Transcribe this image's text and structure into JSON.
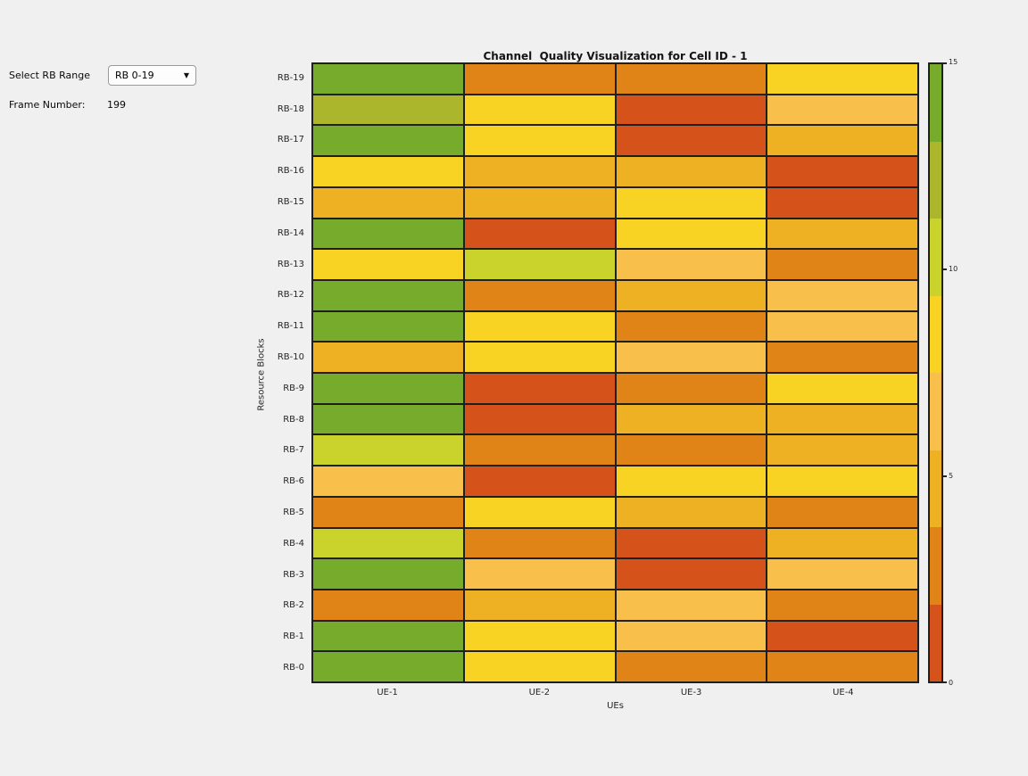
{
  "window": {
    "background": "#f0f0f0"
  },
  "controls": {
    "rb_range_label": "Select RB Range",
    "rb_range_value": "RB 0-19",
    "dropdown_arrow_icon": "chevron-down",
    "frame_number_label": "Frame Number:",
    "frame_number_value": "199"
  },
  "chart": {
    "title": "Channel  Quality Visualization for Cell ID - 1",
    "xlabel": "UEs",
    "ylabel": "Resource Blocks"
  },
  "chart_data": {
    "type": "heatmap",
    "title": "Channel  Quality Visualization for Cell ID - 1",
    "xlabel": "UEs",
    "ylabel": "Resource Blocks",
    "x_categories": [
      "UE-1",
      "UE-2",
      "UE-3",
      "UE-4"
    ],
    "y_categories_top_to_bottom": [
      "RB-19",
      "RB-18",
      "RB-17",
      "RB-16",
      "RB-15",
      "RB-14",
      "RB-13",
      "RB-12",
      "RB-11",
      "RB-10",
      "RB-9",
      "RB-8",
      "RB-7",
      "RB-6",
      "RB-5",
      "RB-4",
      "RB-3",
      "RB-2",
      "RB-1",
      "RB-0"
    ],
    "grid_line_color": "#1f1f1f",
    "palette": {
      "green": {
        "hex": "#76ab2c",
        "approx_value": 14.1
      },
      "olive": {
        "hex": "#abb62c",
        "approx_value": 12.2
      },
      "yellow_green": {
        "hex": "#c9d32b",
        "approx_value": 10.3
      },
      "yellow": {
        "hex": "#f8d323",
        "approx_value": 8.4
      },
      "light_orange": {
        "hex": "#f8c04a",
        "approx_value": 6.6
      },
      "amber": {
        "hex": "#edb123",
        "approx_value": 4.7
      },
      "orange": {
        "hex": "#e08418",
        "approx_value": 2.8
      },
      "red_orange": {
        "hex": "#d5521a",
        "approx_value": 0.9
      }
    },
    "values_estimated_from_colorbar": true,
    "rows": [
      {
        "label": "RB-19",
        "cells": [
          "green",
          "orange",
          "orange",
          "yellow"
        ],
        "approx_values": [
          14.1,
          2.8,
          2.8,
          8.4
        ]
      },
      {
        "label": "RB-18",
        "cells": [
          "olive",
          "yellow",
          "red_orange",
          "light_orange"
        ],
        "approx_values": [
          12.2,
          8.4,
          0.9,
          6.6
        ]
      },
      {
        "label": "RB-17",
        "cells": [
          "green",
          "yellow",
          "red_orange",
          "amber"
        ],
        "approx_values": [
          14.1,
          8.4,
          0.9,
          4.7
        ]
      },
      {
        "label": "RB-16",
        "cells": [
          "yellow",
          "amber",
          "amber",
          "red_orange"
        ],
        "approx_values": [
          8.4,
          4.7,
          4.7,
          0.9
        ]
      },
      {
        "label": "RB-15",
        "cells": [
          "amber",
          "amber",
          "yellow",
          "red_orange"
        ],
        "approx_values": [
          4.7,
          4.7,
          8.4,
          0.9
        ]
      },
      {
        "label": "RB-14",
        "cells": [
          "green",
          "red_orange",
          "yellow",
          "amber"
        ],
        "approx_values": [
          14.1,
          0.9,
          8.4,
          4.7
        ]
      },
      {
        "label": "RB-13",
        "cells": [
          "yellow",
          "yellow_green",
          "light_orange",
          "orange"
        ],
        "approx_values": [
          8.4,
          10.3,
          6.6,
          2.8
        ]
      },
      {
        "label": "RB-12",
        "cells": [
          "green",
          "orange",
          "amber",
          "light_orange"
        ],
        "approx_values": [
          14.1,
          2.8,
          4.7,
          6.6
        ]
      },
      {
        "label": "RB-11",
        "cells": [
          "green",
          "yellow",
          "orange",
          "light_orange"
        ],
        "approx_values": [
          14.1,
          8.4,
          2.8,
          6.6
        ]
      },
      {
        "label": "RB-10",
        "cells": [
          "amber",
          "yellow",
          "light_orange",
          "orange"
        ],
        "approx_values": [
          4.7,
          8.4,
          6.6,
          2.8
        ]
      },
      {
        "label": "RB-9",
        "cells": [
          "green",
          "red_orange",
          "orange",
          "yellow"
        ],
        "approx_values": [
          14.1,
          0.9,
          2.8,
          8.4
        ]
      },
      {
        "label": "RB-8",
        "cells": [
          "green",
          "red_orange",
          "amber",
          "amber"
        ],
        "approx_values": [
          14.1,
          0.9,
          4.7,
          4.7
        ]
      },
      {
        "label": "RB-7",
        "cells": [
          "yellow_green",
          "orange",
          "orange",
          "amber"
        ],
        "approx_values": [
          10.3,
          2.8,
          2.8,
          4.7
        ]
      },
      {
        "label": "RB-6",
        "cells": [
          "light_orange",
          "red_orange",
          "yellow",
          "yellow"
        ],
        "approx_values": [
          6.6,
          0.9,
          8.4,
          8.4
        ]
      },
      {
        "label": "RB-5",
        "cells": [
          "orange",
          "yellow",
          "amber",
          "orange"
        ],
        "approx_values": [
          2.8,
          8.4,
          4.7,
          2.8
        ]
      },
      {
        "label": "RB-4",
        "cells": [
          "yellow_green",
          "orange",
          "red_orange",
          "amber"
        ],
        "approx_values": [
          10.3,
          2.8,
          0.9,
          4.7
        ]
      },
      {
        "label": "RB-3",
        "cells": [
          "green",
          "light_orange",
          "red_orange",
          "light_orange"
        ],
        "approx_values": [
          14.1,
          6.6,
          0.9,
          6.6
        ]
      },
      {
        "label": "RB-2",
        "cells": [
          "orange",
          "amber",
          "light_orange",
          "orange"
        ],
        "approx_values": [
          2.8,
          4.7,
          6.6,
          2.8
        ]
      },
      {
        "label": "RB-1",
        "cells": [
          "green",
          "yellow",
          "light_orange",
          "red_orange"
        ],
        "approx_values": [
          14.1,
          8.4,
          6.6,
          0.9
        ]
      },
      {
        "label": "RB-0",
        "cells": [
          "green",
          "yellow",
          "orange",
          "orange"
        ],
        "approx_values": [
          14.1,
          8.4,
          2.8,
          2.8
        ]
      }
    ],
    "colorbar": {
      "min": 0,
      "max": 15,
      "ticks": [
        15,
        10,
        5,
        0
      ],
      "band_colors_top_to_bottom": [
        "green",
        "olive",
        "yellow_green",
        "yellow",
        "light_orange",
        "amber",
        "orange",
        "red_orange"
      ],
      "legend_position": "right"
    },
    "grid_on": true
  }
}
